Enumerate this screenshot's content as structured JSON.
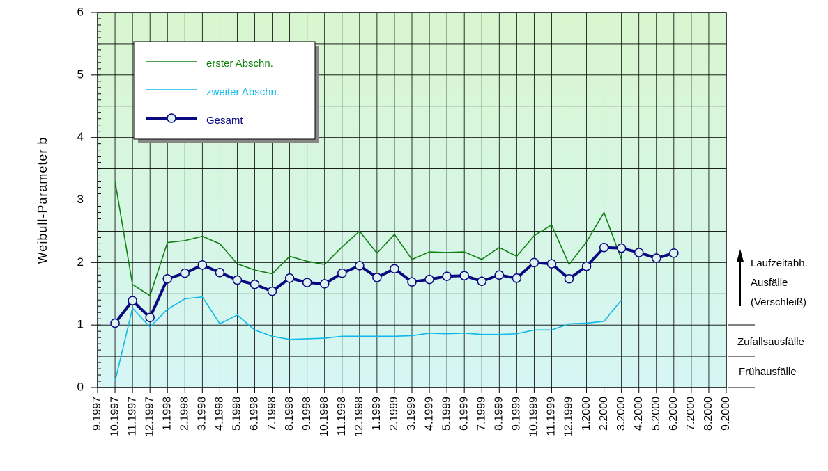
{
  "chart_data": {
    "type": "line",
    "y_label": "Weibull-Parameter b",
    "categories": [
      "9.1997",
      "10.1997",
      "11.1997",
      "12.1997",
      "1.1998",
      "2.1998",
      "3.1998",
      "4.1998",
      "5.1998",
      "6.1998",
      "7.1998",
      "8.1998",
      "9.1998",
      "10.1998",
      "11.1998",
      "12.1998",
      "1.1999",
      "2.1999",
      "3.1999",
      "4.1999",
      "5.1999",
      "6.1999",
      "7.1999",
      "8.1999",
      "9.1999",
      "10.1999",
      "11.1999",
      "12.1999",
      "1.2000",
      "2.2000",
      "3.2000",
      "4.2000",
      "5.2000",
      "6.2000",
      "7.2000",
      "8.2000",
      "9.2000"
    ],
    "series": [
      {
        "name": "erster Abschn.",
        "color": "#108010",
        "values": [
          null,
          3.3,
          1.65,
          1.47,
          2.32,
          2.35,
          2.42,
          2.3,
          1.98,
          1.88,
          1.82,
          2.1,
          2.02,
          1.97,
          2.25,
          2.5,
          2.15,
          2.45,
          2.05,
          2.17,
          2.16,
          2.17,
          2.05,
          2.24,
          2.1,
          2.43,
          2.6,
          1.97,
          2.33,
          2.8,
          2.05,
          null,
          null,
          null,
          null,
          null,
          null
        ]
      },
      {
        "name": "zweiter Abschn.",
        "color": "#10b8e8",
        "values": [
          null,
          0.1,
          1.27,
          0.97,
          1.25,
          1.42,
          1.45,
          1.02,
          1.16,
          0.92,
          0.82,
          0.77,
          0.78,
          0.79,
          0.82,
          0.82,
          0.82,
          0.82,
          0.83,
          0.87,
          0.86,
          0.87,
          0.85,
          0.85,
          0.86,
          0.92,
          0.92,
          1.02,
          1.03,
          1.06,
          1.4,
          null,
          null,
          null,
          null,
          null,
          null
        ]
      },
      {
        "name": "Gesamt",
        "color": "#0a0a80",
        "markers": true,
        "values": [
          null,
          1.03,
          1.39,
          1.12,
          1.74,
          1.83,
          1.96,
          1.84,
          1.72,
          1.65,
          1.54,
          1.75,
          1.68,
          1.66,
          1.83,
          1.95,
          1.76,
          1.9,
          1.69,
          1.73,
          1.78,
          1.79,
          1.7,
          1.8,
          1.75,
          2.0,
          1.98,
          1.74,
          1.94,
          2.24,
          2.23,
          2.16,
          2.07,
          2.15,
          null,
          null,
          null
        ]
      }
    ],
    "ylim": [
      0,
      6
    ],
    "yticks": [
      0,
      1,
      2,
      3,
      4,
      5,
      6
    ],
    "ygrid": [
      0.5,
      1,
      1.5,
      2,
      2.5,
      3,
      3.5,
      4,
      4.5,
      5,
      5.5
    ],
    "grid": true,
    "annotations": [
      "Laufzeitabh.",
      "Ausfälle",
      "(Verschleiß)",
      "Zufallsausfälle",
      "Frühausfälle"
    ]
  }
}
